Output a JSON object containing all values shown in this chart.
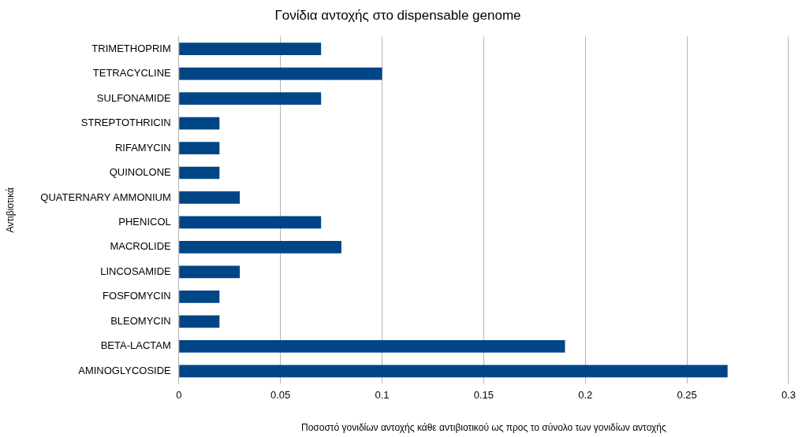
{
  "chart_data": {
    "type": "bar",
    "orientation": "horizontal",
    "title": "Γονίδια αντοχής στο dispensable genome",
    "xlabel": "Ποσοστό γονιδίων αντοχής κάθε αντιβιοτικού ως προς το σύνολο των γονιδίων αντοχής",
    "ylabel": "Αντιβιοτικά",
    "categories": [
      "TRIMETHOPRIM",
      "TETRACYCLINE",
      "SULFONAMIDE",
      "STREPTOTHRICIN",
      "RIFAMYCIN",
      "QUINOLONE",
      "QUATERNARY AMMONIUM",
      "PHENICOL",
      "MACROLIDE",
      "LINCOSAMIDE",
      "FOSFOMYCIN",
      "BLEOMYCIN",
      "BETA-LACTAM",
      "AMINOGLYCOSIDE"
    ],
    "values": [
      0.07,
      0.1,
      0.07,
      0.02,
      0.02,
      0.02,
      0.03,
      0.07,
      0.08,
      0.03,
      0.02,
      0.02,
      0.19,
      0.27
    ],
    "color": "#004586",
    "xlim": [
      0,
      0.3
    ],
    "xticks": [
      0,
      0.05,
      0.1,
      0.15,
      0.2,
      0.25,
      0.3
    ],
    "grid": "x",
    "legend": false
  }
}
